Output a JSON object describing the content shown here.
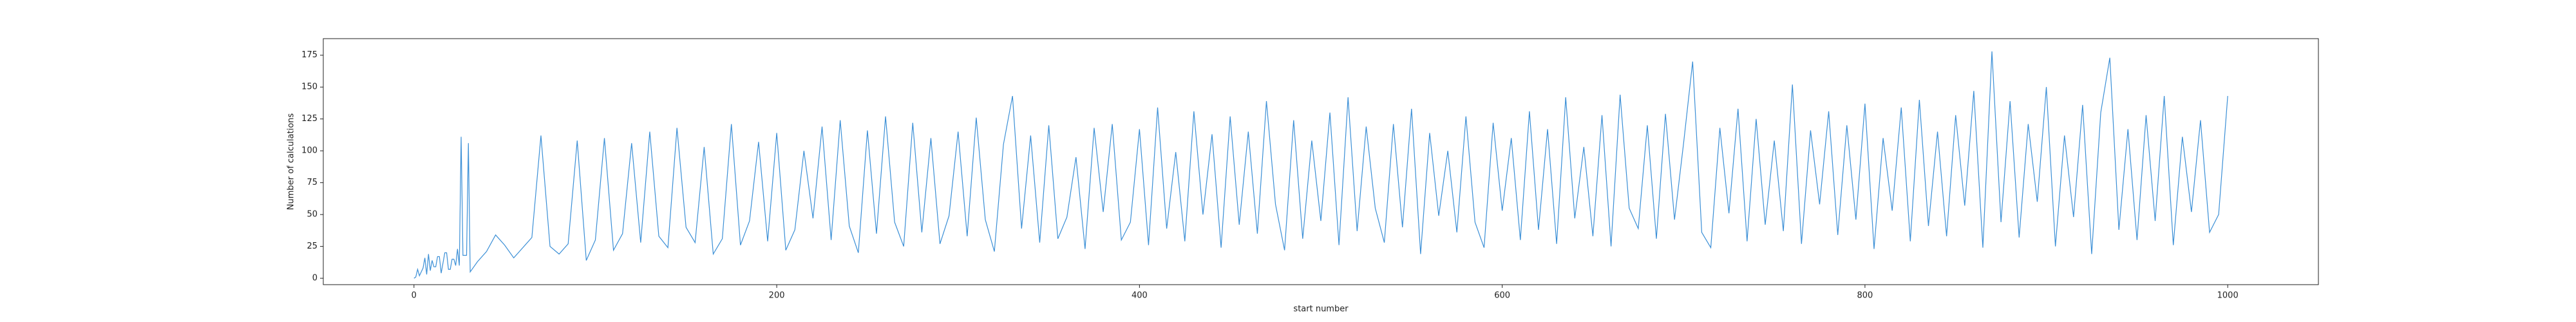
{
  "chart_data": {
    "type": "line",
    "x_label": "start number",
    "y_label": "Number of calculations",
    "xlim": [
      -50,
      1050
    ],
    "ylim": [
      -5,
      188
    ],
    "xticks": [
      0,
      200,
      400,
      600,
      800,
      1000
    ],
    "yticks": [
      0,
      25,
      50,
      75,
      100,
      125,
      150,
      175
    ],
    "color": "#3b8fd6",
    "x": [
      0,
      1,
      2,
      3,
      4,
      5,
      6,
      7,
      8,
      9,
      10,
      11,
      12,
      13,
      14,
      15,
      16,
      17,
      18,
      19,
      20,
      21,
      22,
      23,
      24,
      25,
      26,
      27,
      28,
      29,
      30,
      31,
      35,
      40,
      45,
      50,
      55,
      60,
      65,
      70,
      75,
      80,
      85,
      90,
      95,
      100,
      105,
      110,
      115,
      120,
      125,
      130,
      135,
      140,
      145,
      150,
      155,
      160,
      165,
      170,
      175,
      180,
      185,
      190,
      195,
      200,
      205,
      210,
      215,
      220,
      225,
      230,
      235,
      240,
      245,
      250,
      255,
      260,
      265,
      270,
      275,
      280,
      285,
      290,
      295,
      300,
      305,
      310,
      315,
      320,
      325,
      330,
      335,
      340,
      345,
      350,
      355,
      360,
      365,
      370,
      375,
      380,
      385,
      390,
      395,
      400,
      405,
      410,
      415,
      420,
      425,
      430,
      435,
      440,
      445,
      450,
      455,
      460,
      465,
      470,
      475,
      480,
      485,
      490,
      495,
      500,
      505,
      510,
      515,
      520,
      525,
      530,
      535,
      540,
      545,
      550,
      555,
      560,
      565,
      570,
      575,
      580,
      585,
      590,
      595,
      600,
      605,
      610,
      615,
      620,
      625,
      630,
      635,
      640,
      645,
      650,
      655,
      660,
      665,
      670,
      675,
      680,
      685,
      690,
      695,
      700,
      705,
      710,
      715,
      720,
      725,
      730,
      735,
      740,
      745,
      750,
      755,
      760,
      765,
      770,
      775,
      780,
      785,
      790,
      795,
      800,
      805,
      810,
      815,
      820,
      825,
      830,
      835,
      840,
      845,
      850,
      855,
      860,
      865,
      870,
      875,
      880,
      885,
      890,
      895,
      900,
      905,
      910,
      915,
      920,
      925,
      930,
      935,
      940,
      945,
      950,
      955,
      960,
      965,
      970,
      975,
      980,
      985,
      990,
      995,
      1000
    ],
    "values": [
      0,
      1,
      7,
      2,
      5,
      8,
      16,
      3,
      19,
      6,
      14,
      9,
      9,
      17,
      17,
      4,
      12,
      20,
      20,
      7,
      7,
      15,
      15,
      10,
      23,
      10,
      111,
      18,
      18,
      18,
      106,
      5,
      13,
      21,
      34,
      26,
      16,
      24,
      32,
      112,
      25,
      19,
      27,
      108,
      14,
      30,
      110,
      22,
      35,
      106,
      28,
      115,
      33,
      24,
      118,
      40,
      28,
      103,
      19,
      31,
      121,
      26,
      45,
      107,
      29,
      114,
      22,
      38,
      100,
      47,
      119,
      30,
      124,
      41,
      20,
      116,
      35,
      127,
      44,
      25,
      122,
      36,
      110,
      27,
      49,
      115,
      33,
      126,
      46,
      21,
      105,
      143,
      39,
      112,
      28,
      120,
      31,
      48,
      95,
      23,
      118,
      52,
      121,
      30,
      44,
      117,
      26,
      134,
      39,
      99,
      29,
      131,
      50,
      113,
      24,
      127,
      42,
      115,
      35,
      139,
      58,
      22,
      124,
      31,
      108,
      45,
      130,
      26,
      142,
      37,
      119,
      55,
      28,
      121,
      40,
      133,
      19,
      114,
      49,
      100,
      36,
      127,
      44,
      24,
      122,
      53,
      110,
      30,
      131,
      38,
      117,
      27,
      142,
      47,
      103,
      33,
      128,
      25,
      144,
      55,
      39,
      120,
      31,
      129,
      46,
      106,
      170,
      36,
      24,
      118,
      51,
      133,
      29,
      125,
      42,
      108,
      37,
      152,
      27,
      116,
      58,
      131,
      34,
      120,
      46,
      137,
      23,
      110,
      53,
      134,
      29,
      140,
      41,
      115,
      33,
      128,
      57,
      147,
      24,
      178,
      44,
      139,
      32,
      121,
      60,
      150,
      25,
      112,
      48,
      136,
      19,
      130,
      173,
      38,
      117,
      30,
      128,
      45,
      143,
      26,
      111,
      52,
      124,
      36,
      50,
      143
    ]
  }
}
